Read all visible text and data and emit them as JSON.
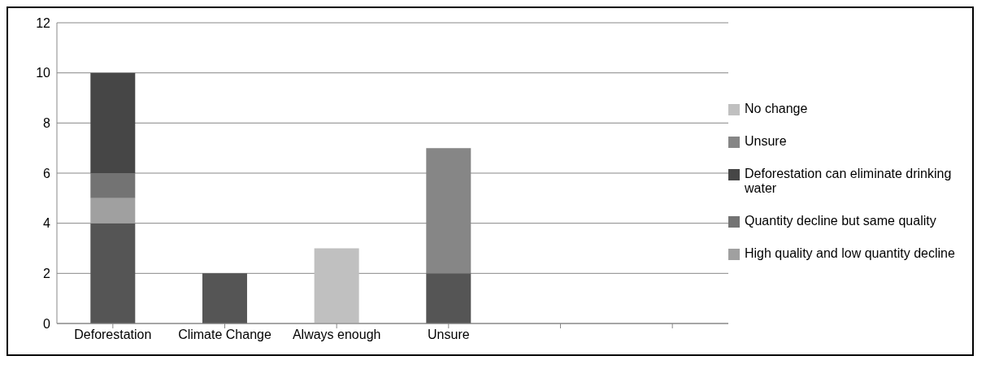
{
  "chart_data": {
    "type": "bar",
    "stacked": true,
    "categories": [
      "Deforestation",
      "Climate Change",
      "Always enough",
      "Unsure",
      null,
      null
    ],
    "series": [
      {
        "color": "#555555",
        "values": [
          4,
          2,
          0,
          2,
          0,
          0
        ]
      },
      {
        "name": "High quality and low quantity decline",
        "color": "#a0a0a0",
        "values": [
          1,
          0,
          0,
          0,
          0,
          0
        ]
      },
      {
        "name": "Quantity decline but same quality",
        "color": "#737373",
        "values": [
          1,
          0,
          0,
          0,
          0,
          0
        ]
      },
      {
        "name": "Deforestation can eliminate drinking water",
        "color": "#464646",
        "values": [
          4,
          0,
          0,
          0,
          0,
          0
        ]
      },
      {
        "name": "Unsure",
        "color": "#868686",
        "values": [
          0,
          0,
          0,
          5,
          0,
          0
        ]
      },
      {
        "name": "No change",
        "color": "#c0c0c0",
        "values": [
          0,
          0,
          3,
          0,
          0,
          0
        ]
      }
    ],
    "ylim": [
      0,
      12
    ],
    "yticks": [
      0,
      2,
      4,
      6,
      8,
      10,
      12
    ],
    "grid": "y",
    "legend": "right"
  }
}
